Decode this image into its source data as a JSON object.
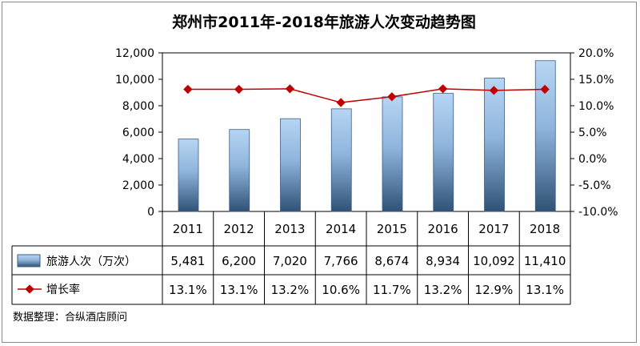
{
  "chart_data": {
    "type": "bar",
    "title": "郑州市2011年-2018年旅游人次变动趋势图",
    "categories": [
      "2011",
      "2012",
      "2013",
      "2014",
      "2015",
      "2016",
      "2017",
      "2018"
    ],
    "series": [
      {
        "name": "旅游人次（万次）",
        "type": "bar",
        "axis": "left",
        "values": [
          5481,
          6200,
          7020,
          7766,
          8674,
          8934,
          10092,
          11410
        ],
        "value_labels": [
          "5,481",
          "6,200",
          "7,020",
          "7,766",
          "8,674",
          "8,934",
          "10,092",
          "11,410"
        ],
        "color": "#9ec3ea"
      },
      {
        "name": "增长率",
        "type": "line",
        "axis": "right",
        "values": [
          13.1,
          13.1,
          13.2,
          10.6,
          11.7,
          13.2,
          12.9,
          13.1
        ],
        "value_labels": [
          "13.1%",
          "13.1%",
          "13.2%",
          "10.6%",
          "11.7%",
          "13.2%",
          "12.9%",
          "13.1%"
        ],
        "color": "#c00000"
      }
    ],
    "y_left": {
      "min": 0,
      "max": 12000,
      "ticks": [
        0,
        2000,
        4000,
        6000,
        8000,
        10000,
        12000
      ],
      "tick_labels": [
        "0",
        "2,000",
        "4,000",
        "6,000",
        "8,000",
        "10,000",
        "12,000"
      ]
    },
    "y_right": {
      "min": -10,
      "max": 20,
      "ticks": [
        -10,
        -5,
        0,
        5,
        10,
        15,
        20
      ],
      "tick_labels": [
        "-10.0%",
        "-5.0%",
        "0.0%",
        "5.0%",
        "10.0%",
        "15.0%",
        "20.0%"
      ]
    },
    "grid": false,
    "legend": "data-table-left"
  },
  "source_note": "数据整理：合纵酒店顾问",
  "colors": {
    "bar_top": "#b7d5f3",
    "bar_bottom": "#2f5276",
    "line": "#c00000",
    "border": "#8c8c8c"
  }
}
